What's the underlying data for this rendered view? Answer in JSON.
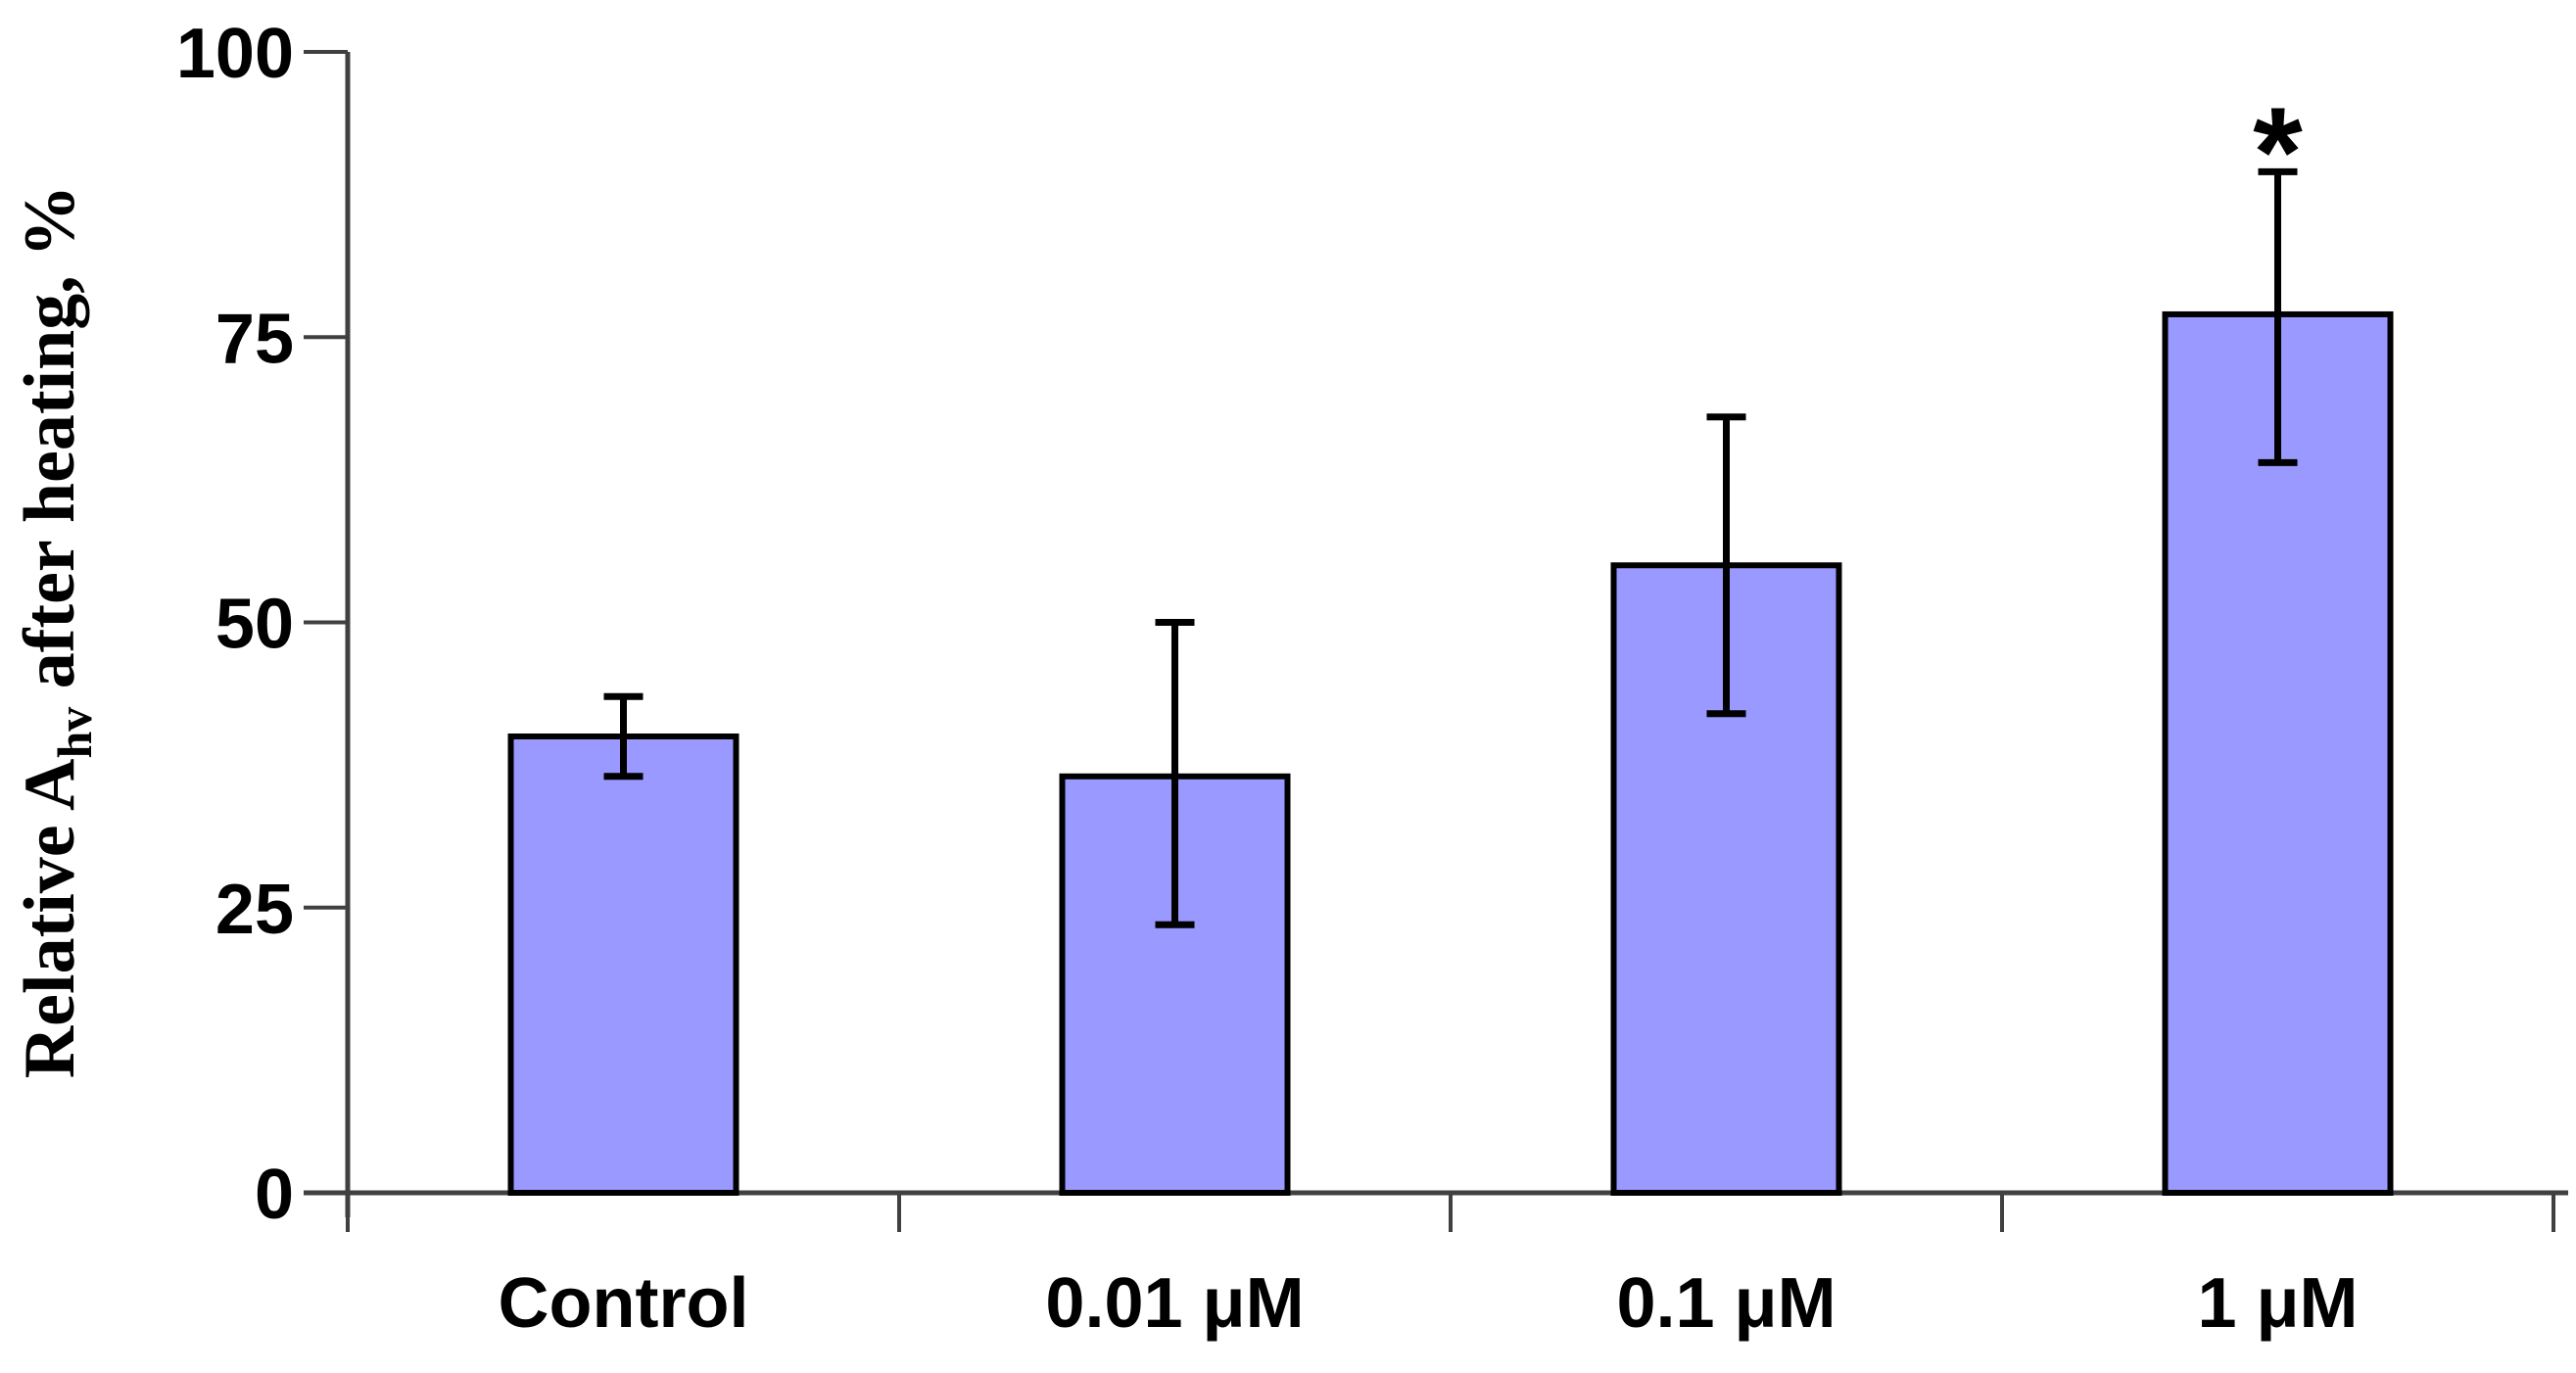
{
  "chart_data": {
    "type": "bar",
    "title": "",
    "categories": [
      "Control",
      "0.01 μM",
      "0.1 μM",
      "1 μM"
    ],
    "values": [
      40,
      36.5,
      55,
      77
    ],
    "error_up": [
      3.5,
      13.5,
      13,
      12.5
    ],
    "error_down": [
      3.5,
      13,
      13,
      13
    ],
    "ylabel": "Relative Ahv after heating, %",
    "ylabel_parts": {
      "main": "Relative A",
      "sub": "hv",
      "rest": " after heating, %"
    },
    "yticks": [
      0,
      25,
      50,
      75,
      100
    ],
    "ylim": [
      0,
      100
    ],
    "grid": false,
    "legend_position": "none",
    "annotations": [
      {
        "text": "*",
        "category_index": 3
      }
    ],
    "colors": {
      "bar_fill": "#9999FF",
      "bar_border": "#000000",
      "axis": "#404040",
      "error_bar": "#000000",
      "text": "#000000",
      "background": "#FFFFFF"
    }
  }
}
